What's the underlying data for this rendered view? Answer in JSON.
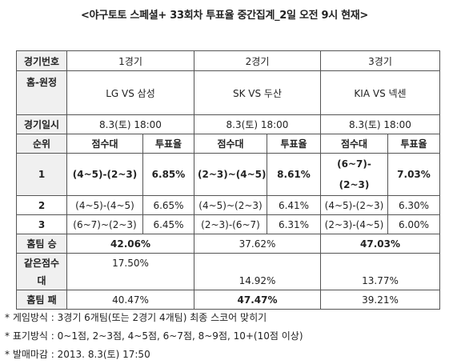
{
  "title": "<야구토토 스페셜+ 33회차 투표율 중간집계_2일 오전 9시 현재>",
  "rows": {
    "game_no": {
      "label": "경기번호",
      "g1": "1경기",
      "g2": "2경기",
      "g3": "3경기"
    },
    "home_away": {
      "label": "홈-원정",
      "g1": "LG VS 삼성",
      "g2": "SK VS 두산",
      "g3": "KIA VS 넥센"
    },
    "date": {
      "label": "경기일시",
      "g1": "8.3(토) 18:00",
      "g2": "8.3(토) 18:00",
      "g3": "8.3(토) 18:00"
    },
    "header": {
      "rank": "순위",
      "score": "점수대",
      "vote": "투표율"
    },
    "rank1": {
      "rank": "1",
      "g1_score": "(4~5)-(2~3)",
      "g1_vote": "6.85%",
      "g2_score": "(2~3)~(4~5)",
      "g2_vote": "8.61%",
      "g3_score": "(6~7)-(2~3)",
      "g3_vote": "7.03%"
    },
    "rank2": {
      "rank": "2",
      "g1_score": "(4~5)-(4~5)",
      "g1_vote": "6.65%",
      "g2_score": "(4~5)~(2~3)",
      "g2_vote": "6.41%",
      "g3_score": "(4~5)-(2~3)",
      "g3_vote": "6.30%"
    },
    "rank3": {
      "rank": "3",
      "g1_score": "(6~7)~(2~3)",
      "g1_vote": "6.45%",
      "g2_score": "(2~3)-(6~7)",
      "g2_vote": "6.31%",
      "g3_score": "(2~3)-(4~5)",
      "g3_vote": "6.00%"
    },
    "home_win": {
      "label": "홈팀 승",
      "g1": "42.06%",
      "g2": "37.62%",
      "g3": "47.03%"
    },
    "tie": {
      "label": "같은점수대",
      "g1": "17.50%",
      "g2": "14.92%",
      "g3": "13.77%"
    },
    "home_loss": {
      "label": "홈팀 패",
      "g1": "40.47%",
      "g2": "47.47%",
      "g3": "39.21%"
    }
  },
  "notes": [
    "* 게임방식 : 3경기 6개팀(또는 2경기 4개팀) 최종 스코어 맞히기",
    "* 표기방식 : 0~1점, 2~3점, 4~5점, 6~7점, 8~9점, 10+(10점 이상)",
    "* 발매마감 : 2013. 8.3(토) 17:50"
  ]
}
